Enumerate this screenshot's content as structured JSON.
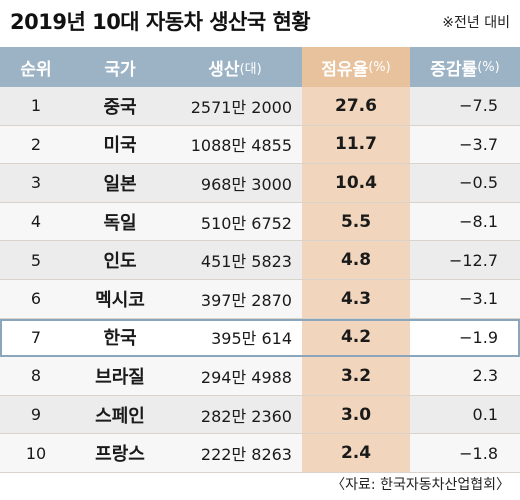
{
  "title": "2019년 10대 자동차 생산국 현황",
  "note": "※전년 대비",
  "source": "〈자료: 한국자동차산업협회〉",
  "colors": {
    "header": "#9bb3c4",
    "share_column": "#f1d6bd",
    "highlight_border": "#8aa6bd"
  },
  "chart_data": {
    "type": "table",
    "title": "2019년 10대 자동차 생산국 현황",
    "columns": [
      "순위",
      "국가",
      "생산",
      "점유율",
      "증감률"
    ],
    "column_units": [
      "",
      "",
      "(대)",
      "(%)",
      "(%)"
    ],
    "highlighted_row": "한국",
    "rows": [
      {
        "rank": "1",
        "country": "중국",
        "production": "2571만 2000",
        "share": "27.6",
        "change": "−7.5"
      },
      {
        "rank": "2",
        "country": "미국",
        "production": "1088만 4855",
        "share": "11.7",
        "change": "−3.7"
      },
      {
        "rank": "3",
        "country": "일본",
        "production": "968만 3000",
        "share": "10.4",
        "change": "−0.5"
      },
      {
        "rank": "4",
        "country": "독일",
        "production": "510만 6752",
        "share": "5.5",
        "change": "−8.1"
      },
      {
        "rank": "5",
        "country": "인도",
        "production": "451만 5823",
        "share": "4.8",
        "change": "−12.7"
      },
      {
        "rank": "6",
        "country": "멕시코",
        "production": "397만 2870",
        "share": "4.3",
        "change": "−3.1"
      },
      {
        "rank": "7",
        "country": "한국",
        "production": "395만 614",
        "share": "4.2",
        "change": "−1.9"
      },
      {
        "rank": "8",
        "country": "브라질",
        "production": "294만 4988",
        "share": "3.2",
        "change": "2.3"
      },
      {
        "rank": "9",
        "country": "스페인",
        "production": "282만 2360",
        "share": "3.0",
        "change": "0.1"
      },
      {
        "rank": "10",
        "country": "프랑스",
        "production": "222만 8263",
        "share": "2.4",
        "change": "−1.8"
      }
    ]
  }
}
